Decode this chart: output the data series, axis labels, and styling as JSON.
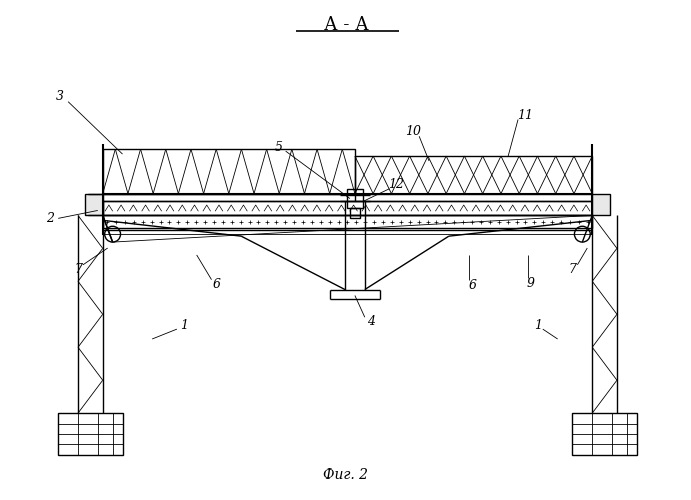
{
  "bg_color": "#ffffff",
  "title": "А - А",
  "caption": "Фиг. 2",
  "lw": 1.0,
  "lw_thin": 0.6,
  "lw_thick": 1.5
}
